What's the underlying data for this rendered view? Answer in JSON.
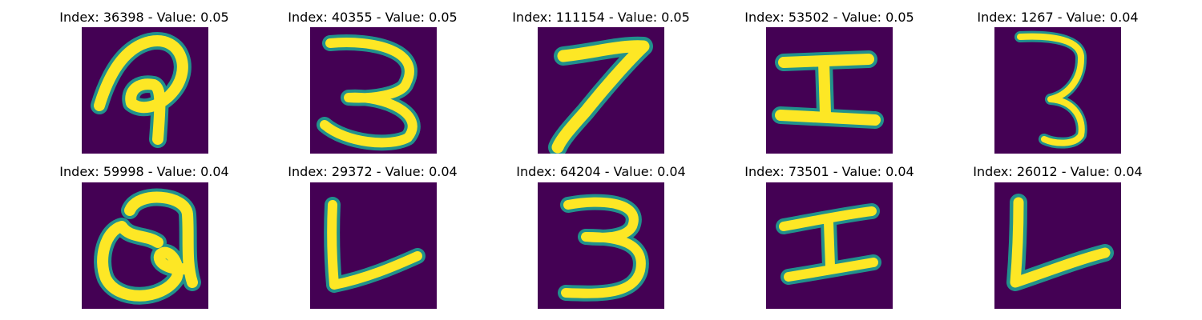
{
  "colors": {
    "background": "#440154",
    "mid": "#21918c",
    "edge": "#5ec962",
    "ink": "#fde725"
  },
  "panels": [
    {
      "title": "Index: 36398 - Value: 0.05",
      "glyph": "p-loop-icon"
    },
    {
      "title": "Index: 40355 - Value: 0.05",
      "glyph": "digit-3-icon"
    },
    {
      "title": "Index: 111154 - Value: 0.05",
      "glyph": "digit-7-icon"
    },
    {
      "title": "Index: 53502 - Value: 0.05",
      "glyph": "letter-i-icon"
    },
    {
      "title": "Index: 1267 - Value: 0.04",
      "glyph": "digit-3-thin-icon"
    },
    {
      "title": "Index: 59998 - Value: 0.04",
      "glyph": "letter-q-icon"
    },
    {
      "title": "Index: 29372 - Value: 0.04",
      "glyph": "letter-l-icon"
    },
    {
      "title": "Index: 64204 - Value: 0.04",
      "glyph": "digit-3-icon"
    },
    {
      "title": "Index: 73501 - Value: 0.04",
      "glyph": "letter-i-icon"
    },
    {
      "title": "Index: 26012 - Value: 0.04",
      "glyph": "letter-l-icon"
    }
  ]
}
